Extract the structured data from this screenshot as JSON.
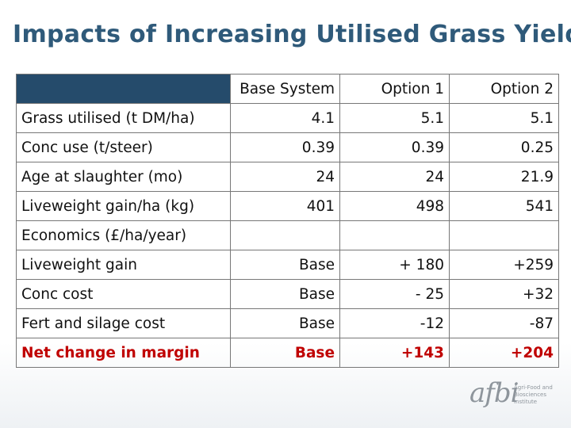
{
  "title": "Impacts of Increasing Utilised Grass Yield",
  "table": {
    "columns": [
      "Base System",
      "Option 1",
      "Option 2"
    ],
    "rows": [
      {
        "label": "Grass utilised (t DM/ha)",
        "values": [
          "4.1",
          "5.1",
          "5.1"
        ]
      },
      {
        "label": "Conc use (t/steer)",
        "values": [
          "0.39",
          "0.39",
          "0.25"
        ]
      },
      {
        "label": "Age at slaughter (mo)",
        "values": [
          "24",
          "24",
          "21.9"
        ]
      },
      {
        "label": "Liveweight gain/ha (kg)",
        "values": [
          "401",
          "498",
          "541"
        ]
      },
      {
        "label": "Economics (£/ha/year)",
        "values": [
          "",
          "",
          ""
        ]
      },
      {
        "label": "Liveweight gain",
        "values": [
          "Base",
          "+ 180",
          "+259"
        ]
      },
      {
        "label": "Conc cost",
        "values": [
          "Base",
          "- 25",
          "+32"
        ]
      },
      {
        "label": "Fert and silage cost",
        "values": [
          "Base",
          "-12",
          "-87"
        ]
      },
      {
        "label": "Net change in margin",
        "values": [
          "Base",
          "+143",
          "+204"
        ]
      }
    ]
  },
  "logo": {
    "wordmark": "afbi",
    "subtitle": "Agri-Food and\nBiosciences Institute"
  },
  "colors": {
    "title": "#2f5a7a",
    "header_fill": "#254b6b",
    "highlight": "#c00000"
  }
}
